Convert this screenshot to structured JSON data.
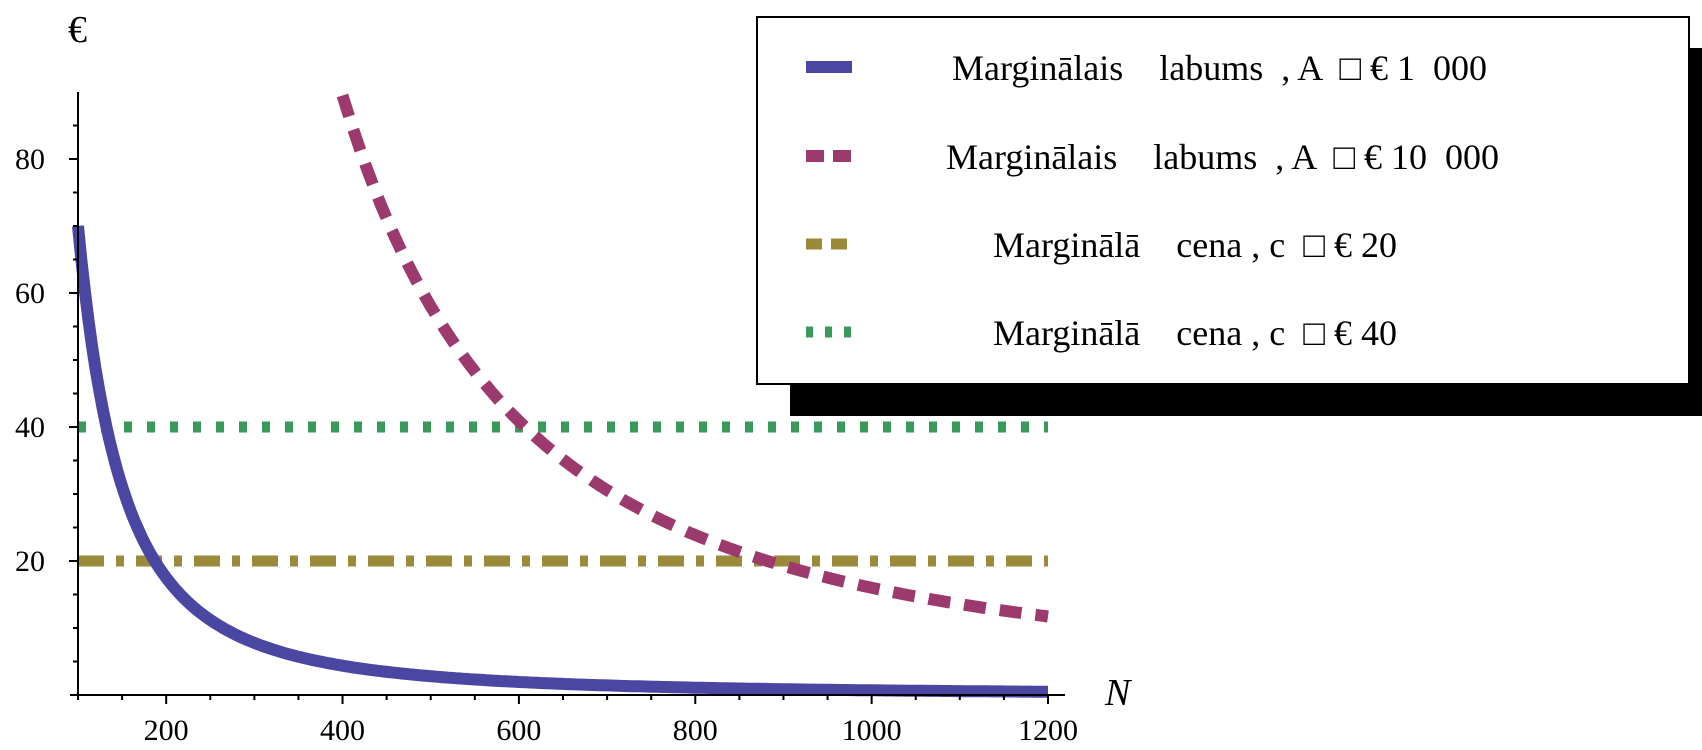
{
  "chart_data": {
    "type": "line",
    "ylabel": "€",
    "xlabel": "N",
    "xlim": [
      100,
      1200
    ],
    "ylim": [
      0,
      90
    ],
    "x_ticks": [
      200,
      400,
      600,
      800,
      1000,
      1200
    ],
    "y_ticks": [
      20,
      40,
      60,
      80
    ],
    "x_tick_labels": [
      "200",
      "400",
      "600",
      "800",
      "1000",
      "1200"
    ],
    "y_tick_labels": [
      "20",
      "40",
      "60",
      "80"
    ],
    "grid": false,
    "legend_position": "top-right",
    "series": [
      {
        "name": "Marginālais    labums  , A  □ € 1  000",
        "color": "#4a47a3",
        "style": "solid",
        "x": [
          100,
          120,
          140,
          160,
          180,
          200,
          250,
          300,
          350,
          400,
          500,
          600,
          700,
          800,
          900,
          1000,
          1100,
          1200
        ],
        "y": [
          70,
          48.6,
          35.7,
          27.3,
          21.6,
          17.5,
          11.2,
          7.8,
          5.7,
          4.4,
          2.8,
          1.9,
          1.4,
          1.1,
          0.9,
          0.7,
          0.6,
          0.5
        ]
      },
      {
        "name": "Marginālais    labums  , A  □ € 10  000",
        "color": "#9c3a6e",
        "style": "dashed",
        "x": [
          400,
          450,
          500,
          550,
          600,
          650,
          700,
          800,
          900,
          1000,
          1100,
          1200
        ],
        "y": [
          89,
          71,
          58,
          48,
          41,
          36,
          31,
          24,
          19.5,
          16,
          13.5,
          11.3
        ]
      },
      {
        "name": "Marginālā    cena , c  □ € 20",
        "color": "#9a8a3a",
        "style": "dashdot",
        "x": [
          100,
          1200
        ],
        "y": [
          20,
          20
        ]
      },
      {
        "name": "Marginālā    cena , c  □ € 40",
        "color": "#3a9a5a",
        "style": "dotted",
        "x": [
          100,
          1200
        ],
        "y": [
          40,
          40
        ]
      }
    ]
  }
}
